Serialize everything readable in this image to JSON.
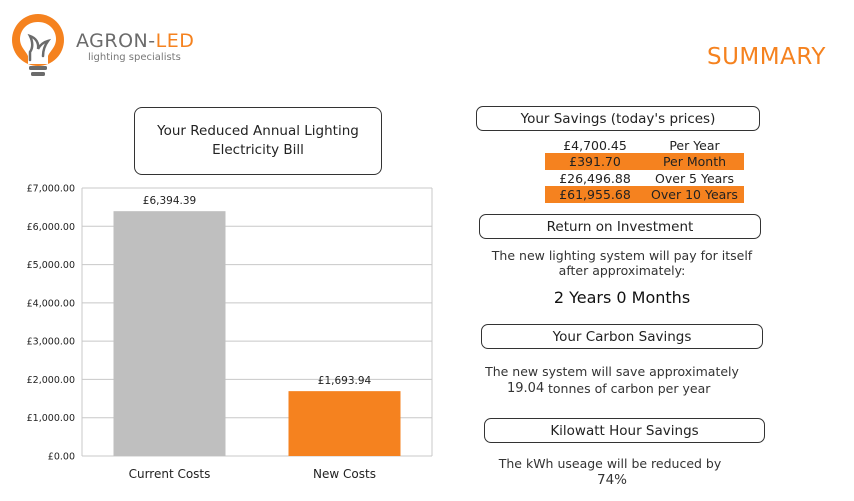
{
  "brand": {
    "name_part1": "AGRON-",
    "name_part2": "LED",
    "tagline": "lighting specialists"
  },
  "page_title": "SUMMARY",
  "chart_title": "Your Reduced Annual Lighting Electricity Bill",
  "chart_data": {
    "type": "bar",
    "categories": [
      "Current Costs",
      "New Costs"
    ],
    "values": [
      6394.39,
      1693.94
    ],
    "data_labels": [
      "£6,394.39",
      "£1,693.94"
    ],
    "ylim": [
      0,
      7000
    ],
    "yticks": [
      0,
      1000,
      2000,
      3000,
      4000,
      5000,
      6000,
      7000
    ],
    "ytick_labels": [
      "£0.00",
      "£1,000.00",
      "£2,000.00",
      "£3,000.00",
      "£4,000.00",
      "£5,000.00",
      "£6,000.00",
      "£7,000.00"
    ],
    "colors": [
      "#bfbfbf",
      "#f5821f"
    ],
    "grid": true,
    "title": "",
    "xlabel": "",
    "ylabel": ""
  },
  "savings": {
    "heading": "Your Savings (today's prices)",
    "rows": [
      {
        "amount": "£4,700.45",
        "period": "Per Year",
        "highlight": false
      },
      {
        "amount": "£391.70",
        "period": "Per Month",
        "highlight": true
      },
      {
        "amount": "£26,496.88",
        "period": "Over 5 Years",
        "highlight": false
      },
      {
        "amount": "£61,955.68",
        "period": "Over 10 Years",
        "highlight": true
      }
    ]
  },
  "roi": {
    "heading": "Return on Investment",
    "text": "The new lighting system will pay for itself after approximately:",
    "value": "2 Years 0 Months"
  },
  "carbon": {
    "heading": "Your Carbon Savings",
    "text1": "The new system will save approximately",
    "value": "19.04",
    "text2": "tonnes of carbon per year"
  },
  "kwh": {
    "heading": "Kilowatt Hour Savings",
    "text": "The kWh useage will be reduced by",
    "value": "74%"
  },
  "colors": {
    "accent": "#f5821f",
    "bar_grey": "#bfbfbf",
    "grid": "#c8c8c8"
  }
}
